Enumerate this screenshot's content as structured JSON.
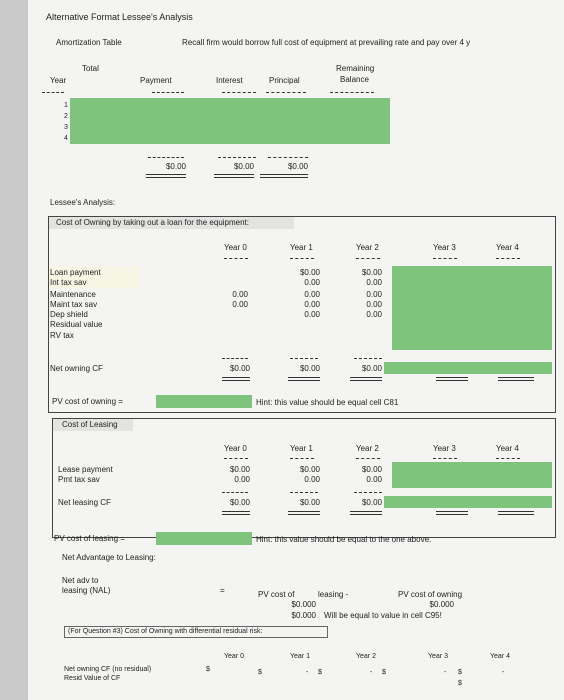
{
  "title": "Alternative Format Lessee's Analysis",
  "amort": {
    "label": "Amortization Table",
    "note": "Recall firm would borrow full cost of equipment at prevailing rate and pay over 4 y",
    "headers": {
      "total": "Total",
      "year": "Year",
      "payment": "Payment",
      "interest": "Interest",
      "principal": "Principal",
      "remaining": "Remaining",
      "balance": "Balance"
    },
    "years": [
      "1",
      "2",
      "3",
      "4"
    ],
    "total_payment": "$0.00",
    "total_interest": "$0.00",
    "total_principal": "$0.00"
  },
  "lessee": {
    "label": "Lessee's Analysis:",
    "own_title": "Cost of Owning by taking out a loan for the equipment:",
    "year_headers": [
      "Year 0",
      "Year 1",
      "Year 2",
      "Year 3",
      "Year 4"
    ],
    "rows": [
      "Loan payment",
      "Int tax sav",
      "Maintenance",
      "Maint tax sav",
      "Dep shield",
      "Residual value",
      "RV tax"
    ],
    "y0": [
      "",
      "",
      "0.00",
      "0.00",
      "",
      "",
      ""
    ],
    "y1": [
      "$0.00",
      "0.00",
      "0.00",
      "0.00",
      "0.00",
      "",
      ""
    ],
    "y2": [
      "$0.00",
      "0.00",
      "0.00",
      "0.00",
      "0.00",
      "",
      ""
    ],
    "net_owning_label": "Net owning CF",
    "net_owning": [
      "$0.00",
      "$0.00",
      "$0.00"
    ],
    "pv_owning_label": "PV cost of owning =",
    "hint_owning": "Hint: this value should be equal cell C81"
  },
  "leasing": {
    "title": "Cost of Leasing",
    "year_headers": [
      "Year 0",
      "Year 1",
      "Year 2",
      "Year 3",
      "Year 4"
    ],
    "rows": [
      "Lease payment",
      "Pmt tax sav"
    ],
    "y0": [
      "$0.00",
      "0.00"
    ],
    "y1": [
      "$0.00",
      "0.00"
    ],
    "y2": [
      "$0.00",
      "0.00"
    ],
    "net_label": "Net leasing CF",
    "net": [
      "$0.00",
      "$0.00",
      "$0.00"
    ],
    "pv_label": "PV cost of leasing =",
    "hint": "Hint: this value should be equal to the one above."
  },
  "nal": {
    "title": "Net Advantage to Leasing:",
    "label1": "Net   adv to",
    "label2": "leasing (NAL)",
    "eq": "=",
    "pv_cost_of": "PV cost of",
    "leasing": "leasing -",
    "pv_cost_owning": "PV cost of owning",
    "v1": "$0.000",
    "v2": "$0.000",
    "v3": "$0.000",
    "will_be": "Will be equal to value in cell C95!"
  },
  "question": {
    "title": "(For Question #3) Cost of Owning with differential residual risk:",
    "year_headers": [
      "Year 0",
      "Year 1",
      "Year 2",
      "Year 3",
      "Year 4"
    ],
    "row1": "Net owning CF (no residual)",
    "row2": "Resid Value of CF",
    "dollar": "$",
    "dash": "-"
  }
}
